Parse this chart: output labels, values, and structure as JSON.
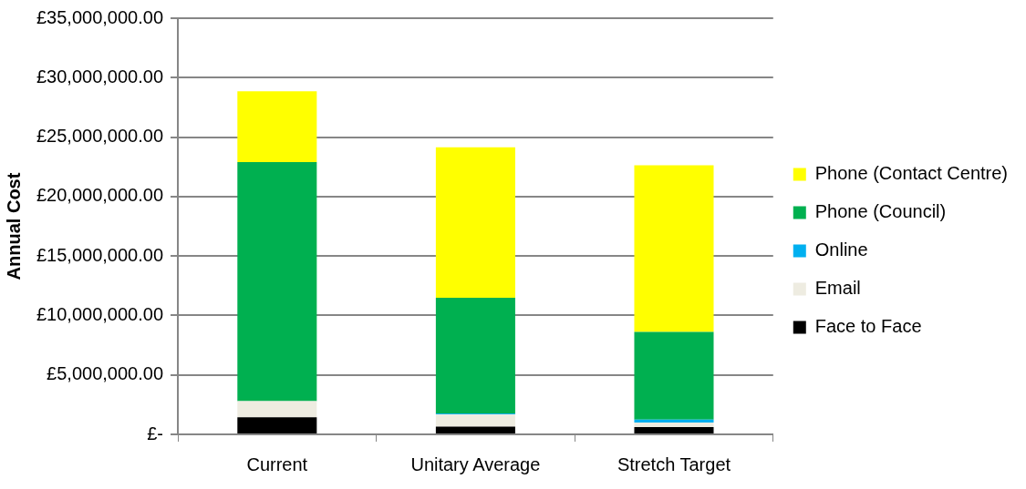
{
  "chart_data": {
    "type": "bar",
    "stacked": true,
    "ylabel": "Annual Cost",
    "categories": [
      "Current",
      "Unitary Average",
      "Stretch Target"
    ],
    "series": [
      {
        "name": "Face to Face",
        "color": "#000000",
        "values": [
          1430000,
          660000,
          610000
        ]
      },
      {
        "name": "Email",
        "color": "#eeece1",
        "values": [
          1370000,
          1020000,
          380000
        ]
      },
      {
        "name": "Online",
        "color": "#00b0f0",
        "values": [
          0,
          80000,
          250000
        ]
      },
      {
        "name": "Phone (Council)",
        "color": "#00b050",
        "values": [
          20090000,
          9730000,
          7370000
        ]
      },
      {
        "name": "Phone (Contact Centre)",
        "color": "#ffff00",
        "values": [
          5970000,
          12650000,
          14030000
        ]
      }
    ],
    "ylim": [
      0,
      35000000
    ],
    "yticks": [
      {
        "value": 0,
        "label": "£-"
      },
      {
        "value": 5000000,
        "label": "£5,000,000.00"
      },
      {
        "value": 10000000,
        "label": "£10,000,000.00"
      },
      {
        "value": 15000000,
        "label": "£15,000,000.00"
      },
      {
        "value": 20000000,
        "label": "£20,000,000.00"
      },
      {
        "value": 25000000,
        "label": "£25,000,000.00"
      },
      {
        "value": 30000000,
        "label": "£30,000,000.00"
      },
      {
        "value": 35000000,
        "label": "£35,000,000.00"
      }
    ],
    "grid": "y",
    "legend": "right"
  }
}
